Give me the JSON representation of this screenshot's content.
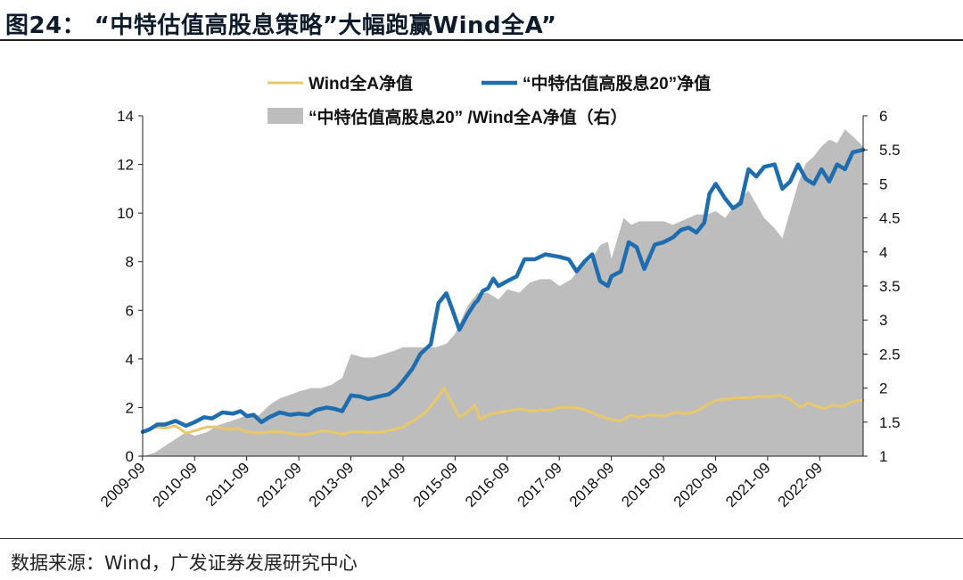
{
  "title": "图24：  “中特估值高股息策略”大幅跑赢Wind全A”",
  "source": "数据来源：Wind，广发证券发展研究中心",
  "chart_data": {
    "type": "line",
    "left_axis": {
      "min": 0,
      "max": 14,
      "ticks": [
        "0",
        "2",
        "4",
        "6",
        "8",
        "10",
        "12",
        "14"
      ]
    },
    "right_axis": {
      "min": 1,
      "max": 6,
      "ticks": [
        "1",
        "1.5",
        "2",
        "2.5",
        "3",
        "3.5",
        "4",
        "4.5",
        "5",
        "5.5",
        "6"
      ],
      "label_suffix": "（右）"
    },
    "x_tick_labels": [
      "2009-09",
      "2010-09",
      "2011-09",
      "2012-09",
      "2013-09",
      "2014-09",
      "2015-09",
      "2016-09",
      "2017-09",
      "2018-09",
      "2019-09",
      "2020-09",
      "2021-09",
      "2022-09"
    ],
    "x_range": [
      2009.67,
      2023.5
    ],
    "colors": {
      "wind": "#E8C86A",
      "strategy": "#1F6DAE",
      "ratio": "#BDBDBD"
    },
    "series": [
      {
        "name": "Wind全A净值",
        "axis": "left",
        "kind": "line",
        "points": [
          [
            2009.67,
            1.0
          ],
          [
            2009.9,
            1.2
          ],
          [
            2010.1,
            1.15
          ],
          [
            2010.3,
            1.25
          ],
          [
            2010.5,
            0.95
          ],
          [
            2010.67,
            1.05
          ],
          [
            2010.9,
            1.2
          ],
          [
            2011.1,
            1.2
          ],
          [
            2011.3,
            1.1
          ],
          [
            2011.5,
            1.15
          ],
          [
            2011.67,
            1.0
          ],
          [
            2011.9,
            0.95
          ],
          [
            2012.1,
            1.0
          ],
          [
            2012.3,
            1.0
          ],
          [
            2012.5,
            0.95
          ],
          [
            2012.67,
            0.88
          ],
          [
            2012.9,
            0.92
          ],
          [
            2013.1,
            1.05
          ],
          [
            2013.3,
            1.0
          ],
          [
            2013.5,
            0.9
          ],
          [
            2013.67,
            1.0
          ],
          [
            2013.9,
            1.0
          ],
          [
            2014.1,
            0.98
          ],
          [
            2014.3,
            1.0
          ],
          [
            2014.5,
            1.1
          ],
          [
            2014.67,
            1.2
          ],
          [
            2014.9,
            1.5
          ],
          [
            2015.1,
            1.8
          ],
          [
            2015.3,
            2.3
          ],
          [
            2015.45,
            2.8
          ],
          [
            2015.6,
            2.2
          ],
          [
            2015.75,
            1.6
          ],
          [
            2015.9,
            1.8
          ],
          [
            2016.05,
            2.1
          ],
          [
            2016.15,
            1.5
          ],
          [
            2016.3,
            1.7
          ],
          [
            2016.5,
            1.8
          ],
          [
            2016.67,
            1.85
          ],
          [
            2016.9,
            1.95
          ],
          [
            2017.1,
            1.85
          ],
          [
            2017.3,
            1.9
          ],
          [
            2017.5,
            1.9
          ],
          [
            2017.67,
            2.0
          ],
          [
            2017.9,
            2.0
          ],
          [
            2018.1,
            1.95
          ],
          [
            2018.3,
            1.8
          ],
          [
            2018.5,
            1.6
          ],
          [
            2018.67,
            1.5
          ],
          [
            2018.85,
            1.45
          ],
          [
            2019.05,
            1.7
          ],
          [
            2019.2,
            1.6
          ],
          [
            2019.4,
            1.7
          ],
          [
            2019.67,
            1.65
          ],
          [
            2019.9,
            1.8
          ],
          [
            2020.1,
            1.75
          ],
          [
            2020.3,
            1.85
          ],
          [
            2020.5,
            2.1
          ],
          [
            2020.67,
            2.3
          ],
          [
            2020.9,
            2.35
          ],
          [
            2021.1,
            2.4
          ],
          [
            2021.3,
            2.4
          ],
          [
            2021.5,
            2.45
          ],
          [
            2021.67,
            2.45
          ],
          [
            2021.9,
            2.5
          ],
          [
            2022.1,
            2.35
          ],
          [
            2022.3,
            2.0
          ],
          [
            2022.45,
            2.2
          ],
          [
            2022.6,
            2.05
          ],
          [
            2022.75,
            1.95
          ],
          [
            2022.9,
            2.1
          ],
          [
            2023.1,
            2.05
          ],
          [
            2023.3,
            2.25
          ],
          [
            2023.5,
            2.3
          ]
        ]
      },
      {
        "name": "“中特估值高股息20”净值",
        "axis": "left",
        "kind": "line",
        "points": [
          [
            2009.67,
            1.0
          ],
          [
            2009.8,
            1.1
          ],
          [
            2009.95,
            1.3
          ],
          [
            2010.1,
            1.3
          ],
          [
            2010.3,
            1.45
          ],
          [
            2010.5,
            1.25
          ],
          [
            2010.67,
            1.4
          ],
          [
            2010.85,
            1.6
          ],
          [
            2011.0,
            1.55
          ],
          [
            2011.2,
            1.8
          ],
          [
            2011.4,
            1.75
          ],
          [
            2011.55,
            1.85
          ],
          [
            2011.67,
            1.65
          ],
          [
            2011.8,
            1.7
          ],
          [
            2011.95,
            1.4
          ],
          [
            2012.1,
            1.6
          ],
          [
            2012.3,
            1.8
          ],
          [
            2012.5,
            1.7
          ],
          [
            2012.67,
            1.75
          ],
          [
            2012.85,
            1.7
          ],
          [
            2013.0,
            1.9
          ],
          [
            2013.2,
            2.0
          ],
          [
            2013.35,
            1.95
          ],
          [
            2013.5,
            1.85
          ],
          [
            2013.67,
            2.5
          ],
          [
            2013.85,
            2.45
          ],
          [
            2014.0,
            2.35
          ],
          [
            2014.2,
            2.45
          ],
          [
            2014.4,
            2.55
          ],
          [
            2014.55,
            2.8
          ],
          [
            2014.67,
            3.1
          ],
          [
            2014.85,
            3.6
          ],
          [
            2015.0,
            4.2
          ],
          [
            2015.2,
            4.6
          ],
          [
            2015.35,
            6.3
          ],
          [
            2015.5,
            6.7
          ],
          [
            2015.62,
            6.0
          ],
          [
            2015.75,
            5.2
          ],
          [
            2015.9,
            5.8
          ],
          [
            2016.05,
            6.3
          ],
          [
            2016.1,
            6.4
          ],
          [
            2016.2,
            6.8
          ],
          [
            2016.3,
            6.9
          ],
          [
            2016.4,
            7.3
          ],
          [
            2016.5,
            7.0
          ],
          [
            2016.67,
            7.2
          ],
          [
            2016.85,
            7.4
          ],
          [
            2017.0,
            8.1
          ],
          [
            2017.2,
            8.1
          ],
          [
            2017.4,
            8.3
          ],
          [
            2017.67,
            8.2
          ],
          [
            2017.85,
            8.1
          ],
          [
            2018.0,
            7.6
          ],
          [
            2018.15,
            8.0
          ],
          [
            2018.3,
            8.3
          ],
          [
            2018.45,
            7.2
          ],
          [
            2018.6,
            7.0
          ],
          [
            2018.67,
            7.4
          ],
          [
            2018.85,
            7.6
          ],
          [
            2019.0,
            8.8
          ],
          [
            2019.15,
            8.6
          ],
          [
            2019.3,
            7.7
          ],
          [
            2019.5,
            8.7
          ],
          [
            2019.67,
            8.8
          ],
          [
            2019.85,
            9.0
          ],
          [
            2020.0,
            9.3
          ],
          [
            2020.15,
            9.4
          ],
          [
            2020.3,
            9.2
          ],
          [
            2020.45,
            9.6
          ],
          [
            2020.55,
            10.8
          ],
          [
            2020.67,
            11.2
          ],
          [
            2020.85,
            10.6
          ],
          [
            2021.0,
            10.2
          ],
          [
            2021.15,
            10.4
          ],
          [
            2021.3,
            11.8
          ],
          [
            2021.45,
            11.5
          ],
          [
            2021.6,
            11.9
          ],
          [
            2021.8,
            12.0
          ],
          [
            2021.95,
            11.0
          ],
          [
            2022.1,
            11.3
          ],
          [
            2022.25,
            12.0
          ],
          [
            2022.4,
            11.4
          ],
          [
            2022.55,
            11.2
          ],
          [
            2022.7,
            11.8
          ],
          [
            2022.85,
            11.3
          ],
          [
            2023.0,
            12.0
          ],
          [
            2023.15,
            11.8
          ],
          [
            2023.3,
            12.5
          ],
          [
            2023.5,
            12.6
          ]
        ]
      },
      {
        "name": "“中特估值高股息20” /Wind全A净值（右）",
        "axis": "right",
        "kind": "area",
        "points": [
          [
            2009.67,
            1.0
          ],
          [
            2009.9,
            1.05
          ],
          [
            2010.1,
            1.15
          ],
          [
            2010.3,
            1.25
          ],
          [
            2010.5,
            1.35
          ],
          [
            2010.67,
            1.3
          ],
          [
            2010.9,
            1.35
          ],
          [
            2011.1,
            1.45
          ],
          [
            2011.3,
            1.5
          ],
          [
            2011.5,
            1.55
          ],
          [
            2011.67,
            1.6
          ],
          [
            2011.9,
            1.6
          ],
          [
            2012.1,
            1.75
          ],
          [
            2012.3,
            1.85
          ],
          [
            2012.5,
            1.9
          ],
          [
            2012.67,
            1.95
          ],
          [
            2012.9,
            2.0
          ],
          [
            2013.1,
            2.0
          ],
          [
            2013.3,
            2.05
          ],
          [
            2013.5,
            2.15
          ],
          [
            2013.67,
            2.5
          ],
          [
            2013.9,
            2.45
          ],
          [
            2014.1,
            2.45
          ],
          [
            2014.3,
            2.5
          ],
          [
            2014.5,
            2.55
          ],
          [
            2014.67,
            2.6
          ],
          [
            2014.9,
            2.6
          ],
          [
            2015.1,
            2.6
          ],
          [
            2015.3,
            2.6
          ],
          [
            2015.5,
            2.65
          ],
          [
            2015.67,
            2.8
          ],
          [
            2015.9,
            3.2
          ],
          [
            2016.1,
            3.4
          ],
          [
            2016.3,
            3.4
          ],
          [
            2016.5,
            3.3
          ],
          [
            2016.67,
            3.45
          ],
          [
            2016.9,
            3.4
          ],
          [
            2017.1,
            3.55
          ],
          [
            2017.3,
            3.6
          ],
          [
            2017.5,
            3.6
          ],
          [
            2017.67,
            3.5
          ],
          [
            2017.9,
            3.6
          ],
          [
            2018.1,
            3.8
          ],
          [
            2018.3,
            3.9
          ],
          [
            2018.45,
            4.1
          ],
          [
            2018.6,
            4.15
          ],
          [
            2018.67,
            3.9
          ],
          [
            2018.9,
            4.5
          ],
          [
            2019.05,
            4.4
          ],
          [
            2019.2,
            4.45
          ],
          [
            2019.4,
            4.45
          ],
          [
            2019.67,
            4.45
          ],
          [
            2019.85,
            4.4
          ],
          [
            2020.0,
            4.45
          ],
          [
            2020.15,
            4.5
          ],
          [
            2020.3,
            4.55
          ],
          [
            2020.5,
            4.55
          ],
          [
            2020.67,
            4.6
          ],
          [
            2020.85,
            4.5
          ],
          [
            2021.0,
            4.65
          ],
          [
            2021.15,
            4.8
          ],
          [
            2021.3,
            4.9
          ],
          [
            2021.45,
            4.7
          ],
          [
            2021.6,
            4.5
          ],
          [
            2021.8,
            4.35
          ],
          [
            2021.95,
            4.2
          ],
          [
            2022.1,
            4.6
          ],
          [
            2022.25,
            5.0
          ],
          [
            2022.4,
            5.3
          ],
          [
            2022.55,
            5.4
          ],
          [
            2022.7,
            5.55
          ],
          [
            2022.85,
            5.65
          ],
          [
            2023.0,
            5.6
          ],
          [
            2023.15,
            5.8
          ],
          [
            2023.3,
            5.7
          ],
          [
            2023.5,
            5.55
          ]
        ]
      }
    ]
  }
}
